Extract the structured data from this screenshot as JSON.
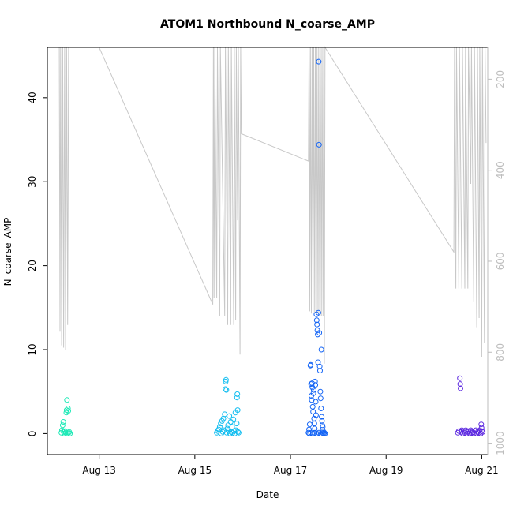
{
  "chart_data": {
    "type": "scatter",
    "title": "ATOM1 Northbound N_coarse_AMP",
    "xlabel": "Date",
    "ylabel": "N_coarse_AMP",
    "xlim": [
      "2022-08-11T22:00",
      "2022-08-21T03:00"
    ],
    "ylim": [
      -2.5,
      46
    ],
    "x_ticks": [
      {
        "label": "Aug 13",
        "date": "2022-08-13T00:00"
      },
      {
        "label": "Aug 15",
        "date": "2022-08-15T00:00"
      },
      {
        "label": "Aug 17",
        "date": "2022-08-17T00:00"
      },
      {
        "label": "Aug 19",
        "date": "2022-08-19T00:00"
      },
      {
        "label": "Aug 21",
        "date": "2022-08-21T00:00"
      }
    ],
    "y_ticks": [
      0,
      10,
      20,
      30,
      40
    ],
    "right_axis": {
      "reversed": true,
      "ylim": [
        1025,
        130
      ],
      "ticks": [
        200,
        400,
        600,
        800,
        1000
      ],
      "color": "#bdbdbd"
    },
    "grid": false,
    "legend": "none",
    "series": [
      {
        "color": "#1DE9B6",
        "points": [
          [
            "2022-08-12T05:00",
            0.1
          ],
          [
            "2022-08-12T05:20",
            0.4
          ],
          [
            "2022-08-12T05:40",
            1.0
          ],
          [
            "2022-08-12T06:00",
            1.4
          ],
          [
            "2022-08-12T06:10",
            0.2
          ],
          [
            "2022-08-12T06:30",
            0.0
          ],
          [
            "2022-08-12T06:50",
            0.3
          ],
          [
            "2022-08-12T07:10",
            0.1
          ],
          [
            "2022-08-12T07:30",
            2.5
          ],
          [
            "2022-08-12T07:40",
            2.8
          ],
          [
            "2022-08-12T07:50",
            4.0
          ],
          [
            "2022-08-12T08:00",
            0.0
          ],
          [
            "2022-08-12T08:20",
            3.0
          ],
          [
            "2022-08-12T08:30",
            2.7
          ],
          [
            "2022-08-12T08:40",
            0.1
          ],
          [
            "2022-08-12T09:00",
            0.2
          ],
          [
            "2022-08-12T09:20",
            0.0
          ]
        ]
      },
      {
        "color": "#14BEF0",
        "points": [
          [
            "2022-08-15T11:00",
            0.1
          ],
          [
            "2022-08-15T11:30",
            0.3
          ],
          [
            "2022-08-15T12:00",
            0.5
          ],
          [
            "2022-08-15T12:30",
            0.8
          ],
          [
            "2022-08-15T13:00",
            1.2
          ],
          [
            "2022-08-15T13:20",
            0.0
          ],
          [
            "2022-08-15T13:40",
            1.5
          ],
          [
            "2022-08-15T14:00",
            0.2
          ],
          [
            "2022-08-15T14:20",
            1.8
          ],
          [
            "2022-08-15T14:40",
            0.4
          ],
          [
            "2022-08-15T15:00",
            2.3
          ],
          [
            "2022-08-15T15:20",
            5.3
          ],
          [
            "2022-08-15T15:30",
            6.2
          ],
          [
            "2022-08-15T15:40",
            6.4
          ],
          [
            "2022-08-15T15:50",
            5.2
          ],
          [
            "2022-08-15T16:00",
            0.1
          ],
          [
            "2022-08-15T16:20",
            0.6
          ],
          [
            "2022-08-15T16:40",
            1.0
          ],
          [
            "2022-08-15T17:00",
            0.3
          ],
          [
            "2022-08-15T17:20",
            2.1
          ],
          [
            "2022-08-15T17:40",
            0.0
          ],
          [
            "2022-08-15T18:00",
            1.4
          ],
          [
            "2022-08-15T18:20",
            0.2
          ],
          [
            "2022-08-15T18:40",
            0.8
          ],
          [
            "2022-08-15T19:00",
            0.1
          ],
          [
            "2022-08-15T19:20",
            1.7
          ],
          [
            "2022-08-15T19:40",
            0.3
          ],
          [
            "2022-08-15T20:00",
            0.0
          ],
          [
            "2022-08-15T20:20",
            2.5
          ],
          [
            "2022-08-15T20:40",
            0.4
          ],
          [
            "2022-08-15T21:00",
            1.2
          ],
          [
            "2022-08-15T21:10",
            4.3
          ],
          [
            "2022-08-15T21:20",
            4.7
          ],
          [
            "2022-08-15T21:30",
            2.8
          ],
          [
            "2022-08-15T21:40",
            0.2
          ],
          [
            "2022-08-15T22:00",
            0.1
          ]
        ]
      },
      {
        "color": "#1565F5",
        "points": [
          [
            "2022-08-17T09:00",
            0.1
          ],
          [
            "2022-08-17T09:20",
            0.5
          ],
          [
            "2022-08-17T09:40",
            1.1
          ],
          [
            "2022-08-17T10:00",
            8.1
          ],
          [
            "2022-08-17T10:10",
            8.2
          ],
          [
            "2022-08-17T10:20",
            5.9
          ],
          [
            "2022-08-17T10:30",
            4.5
          ],
          [
            "2022-08-17T10:40",
            4.0
          ],
          [
            "2022-08-17T10:50",
            6.0
          ],
          [
            "2022-08-17T11:00",
            5.5
          ],
          [
            "2022-08-17T11:10",
            3.2
          ],
          [
            "2022-08-17T11:20",
            2.6
          ],
          [
            "2022-08-17T11:30",
            4.8
          ],
          [
            "2022-08-17T11:40",
            5.2
          ],
          [
            "2022-08-17T11:50",
            1.8
          ],
          [
            "2022-08-17T12:00",
            1.2
          ],
          [
            "2022-08-17T12:10",
            0.6
          ],
          [
            "2022-08-17T12:20",
            6.2
          ],
          [
            "2022-08-17T12:30",
            5.8
          ],
          [
            "2022-08-17T12:40",
            3.8
          ],
          [
            "2022-08-17T12:50",
            2.2
          ],
          [
            "2022-08-17T13:00",
            14.2
          ],
          [
            "2022-08-17T13:10",
            13.5
          ],
          [
            "2022-08-17T13:20",
            13.0
          ],
          [
            "2022-08-17T13:30",
            12.3
          ],
          [
            "2022-08-17T13:40",
            11.8
          ],
          [
            "2022-08-17T13:50",
            8.5
          ],
          [
            "2022-08-17T14:00",
            14.4
          ],
          [
            "2022-08-17T14:10",
            44.3
          ],
          [
            "2022-08-17T14:20",
            34.4
          ],
          [
            "2022-08-17T14:30",
            12.0
          ],
          [
            "2022-08-17T14:40",
            8.0
          ],
          [
            "2022-08-17T14:50",
            7.5
          ],
          [
            "2022-08-17T15:00",
            5.0
          ],
          [
            "2022-08-17T15:10",
            4.2
          ],
          [
            "2022-08-17T15:20",
            3.0
          ],
          [
            "2022-08-17T15:30",
            10.0
          ],
          [
            "2022-08-17T15:40",
            2.0
          ],
          [
            "2022-08-17T15:50",
            1.5
          ],
          [
            "2022-08-17T16:00",
            1.0
          ],
          [
            "2022-08-17T16:10",
            0.8
          ],
          [
            "2022-08-17T16:20",
            0.3
          ],
          [
            "2022-08-17T09:30",
            0.0
          ],
          [
            "2022-08-17T10:15",
            0.1
          ],
          [
            "2022-08-17T11:15",
            0.0
          ],
          [
            "2022-08-17T12:15",
            0.1
          ],
          [
            "2022-08-17T13:15",
            0.0
          ],
          [
            "2022-08-17T14:15",
            0.1
          ],
          [
            "2022-08-17T15:15",
            0.0
          ],
          [
            "2022-08-17T16:15",
            0.1
          ],
          [
            "2022-08-17T16:40",
            0.0
          ],
          [
            "2022-08-17T17:00",
            0.1
          ],
          [
            "2022-08-17T17:20",
            0.0
          ]
        ]
      },
      {
        "color": "#5E2BE0",
        "points": [
          [
            "2022-08-20T12:00",
            0.1
          ],
          [
            "2022-08-20T12:30",
            0.3
          ],
          [
            "2022-08-20T13:00",
            6.6
          ],
          [
            "2022-08-20T13:10",
            5.9
          ],
          [
            "2022-08-20T13:20",
            5.4
          ],
          [
            "2022-08-20T13:40",
            0.2
          ],
          [
            "2022-08-20T14:00",
            0.4
          ],
          [
            "2022-08-20T14:30",
            0.0
          ],
          [
            "2022-08-20T15:00",
            0.3
          ],
          [
            "2022-08-20T15:30",
            0.1
          ],
          [
            "2022-08-20T16:00",
            0.4
          ],
          [
            "2022-08-20T16:30",
            0.0
          ],
          [
            "2022-08-20T17:00",
            0.2
          ],
          [
            "2022-08-20T17:30",
            0.3
          ],
          [
            "2022-08-20T18:00",
            0.0
          ],
          [
            "2022-08-20T18:30",
            0.4
          ],
          [
            "2022-08-20T19:00",
            0.1
          ],
          [
            "2022-08-20T19:30",
            0.2
          ],
          [
            "2022-08-20T20:00",
            0.0
          ],
          [
            "2022-08-20T20:30",
            0.3
          ],
          [
            "2022-08-20T21:00",
            0.4
          ],
          [
            "2022-08-20T21:30",
            0.0
          ],
          [
            "2022-08-20T22:00",
            0.2
          ],
          [
            "2022-08-20T22:30",
            0.1
          ],
          [
            "2022-08-20T23:00",
            0.4
          ],
          [
            "2022-08-20T23:30",
            0.0
          ],
          [
            "2022-08-21T00:00",
            0.3
          ],
          [
            "2022-08-21T00:30",
            0.2
          ],
          [
            "2022-08-20T23:45",
            1.1
          ],
          [
            "2022-08-20T23:55",
            0.7
          ]
        ]
      }
    ],
    "line_series": {
      "axis": "right",
      "color": "#c8c8c8",
      "points": [
        [
          "2022-08-12T04:00",
          130
        ],
        [
          "2022-08-12T04:20",
          755
        ],
        [
          "2022-08-12T04:40",
          130
        ],
        [
          "2022-08-12T05:10",
          785
        ],
        [
          "2022-08-12T05:40",
          130
        ],
        [
          "2022-08-12T06:10",
          790
        ],
        [
          "2022-08-12T06:40",
          130
        ],
        [
          "2022-08-12T07:10",
          795
        ],
        [
          "2022-08-12T07:40",
          130
        ],
        [
          "2022-08-12T08:10",
          740
        ],
        [
          "2022-08-12T08:40",
          130
        ],
        [
          "2022-08-13T00:00",
          130
        ],
        [
          "2022-08-15T09:00",
          695
        ],
        [
          "2022-08-15T09:20",
          130
        ],
        [
          "2022-08-15T09:40",
          680
        ],
        [
          "2022-08-15T10:00",
          130
        ],
        [
          "2022-08-15T11:00",
          680
        ],
        [
          "2022-08-15T11:20",
          130
        ],
        [
          "2022-08-15T12:30",
          720
        ],
        [
          "2022-08-15T12:50",
          130
        ],
        [
          "2022-08-15T15:00",
          720
        ],
        [
          "2022-08-15T15:20",
          130
        ],
        [
          "2022-08-15T16:30",
          740
        ],
        [
          "2022-08-15T16:50",
          130
        ],
        [
          "2022-08-15T18:00",
          740
        ],
        [
          "2022-08-15T18:20",
          130
        ],
        [
          "2022-08-15T19:30",
          740
        ],
        [
          "2022-08-15T19:50",
          130
        ],
        [
          "2022-08-15T20:30",
          730
        ],
        [
          "2022-08-15T20:50",
          130
        ],
        [
          "2022-08-15T21:30",
          510
        ],
        [
          "2022-08-15T21:50",
          130
        ],
        [
          "2022-08-15T22:40",
          805
        ],
        [
          "2022-08-15T23:00",
          130
        ],
        [
          "2022-08-15T23:20",
          320
        ],
        [
          "2022-08-17T09:00",
          380
        ],
        [
          "2022-08-17T09:20",
          130
        ],
        [
          "2022-08-17T09:40",
          710
        ],
        [
          "2022-08-17T10:00",
          130
        ],
        [
          "2022-08-17T10:30",
          715
        ],
        [
          "2022-08-17T10:50",
          130
        ],
        [
          "2022-08-17T11:20",
          715
        ],
        [
          "2022-08-17T11:40",
          130
        ],
        [
          "2022-08-17T12:10",
          715
        ],
        [
          "2022-08-17T12:30",
          130
        ],
        [
          "2022-08-17T13:00",
          715
        ],
        [
          "2022-08-17T13:20",
          130
        ],
        [
          "2022-08-17T13:50",
          715
        ],
        [
          "2022-08-17T14:10",
          130
        ],
        [
          "2022-08-17T14:40",
          715
        ],
        [
          "2022-08-17T15:00",
          130
        ],
        [
          "2022-08-17T15:30",
          720
        ],
        [
          "2022-08-17T15:50",
          130
        ],
        [
          "2022-08-17T16:20",
          720
        ],
        [
          "2022-08-17T16:40",
          130
        ],
        [
          "2022-08-17T17:00",
          825
        ],
        [
          "2022-08-17T17:20",
          130
        ],
        [
          "2022-08-20T10:00",
          580
        ],
        [
          "2022-08-20T10:20",
          130
        ],
        [
          "2022-08-20T11:00",
          660
        ],
        [
          "2022-08-20T11:20",
          130
        ],
        [
          "2022-08-20T12:30",
          660
        ],
        [
          "2022-08-20T12:50",
          130
        ],
        [
          "2022-08-20T14:00",
          660
        ],
        [
          "2022-08-20T14:20",
          130
        ],
        [
          "2022-08-20T15:30",
          660
        ],
        [
          "2022-08-20T15:50",
          130
        ],
        [
          "2022-08-20T17:00",
          660
        ],
        [
          "2022-08-20T17:20",
          130
        ],
        [
          "2022-08-20T18:30",
          430
        ],
        [
          "2022-08-20T18:50",
          130
        ],
        [
          "2022-08-20T20:00",
          690
        ],
        [
          "2022-08-20T20:20",
          130
        ],
        [
          "2022-08-20T21:30",
          745
        ],
        [
          "2022-08-20T21:50",
          130
        ],
        [
          "2022-08-20T22:40",
          725
        ],
        [
          "2022-08-20T23:00",
          130
        ],
        [
          "2022-08-21T00:00",
          810
        ],
        [
          "2022-08-21T00:20",
          130
        ],
        [
          "2022-08-21T01:20",
          780
        ],
        [
          "2022-08-21T01:40",
          130
        ],
        [
          "2022-08-21T02:10",
          340
        ]
      ]
    }
  }
}
